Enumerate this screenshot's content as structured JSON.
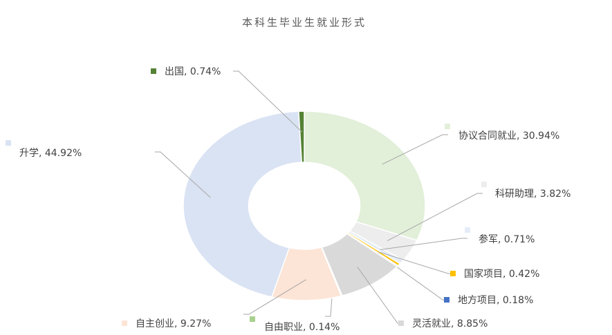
{
  "chart_data": {
    "type": "donut",
    "title": "本科生毕业生就业形式",
    "values": [
      30.94,
      3.82,
      0.71,
      0.42,
      0.18,
      8.85,
      0.14,
      9.27,
      44.92,
      0.74
    ],
    "value_labels": [
      "协议合同就业, 30.94%",
      "科研助理, 3.82%",
      "参军, 0.71%",
      "国家项目, 0.42%",
      "地方项目, 0.18%",
      "灵活就业, 8.85%",
      "自由职业, 0.14%",
      "自主创业, 9.27%",
      "升学, 44.92%",
      "出国, 0.74%"
    ],
    "colors": [
      "#e2efd9",
      "#ededed",
      "#e4ecf7",
      "#ffc000",
      "#4472c4",
      "#d9d9d9",
      "#a9d18e",
      "#fce4d6",
      "#dae3f3",
      "#548235"
    ]
  }
}
